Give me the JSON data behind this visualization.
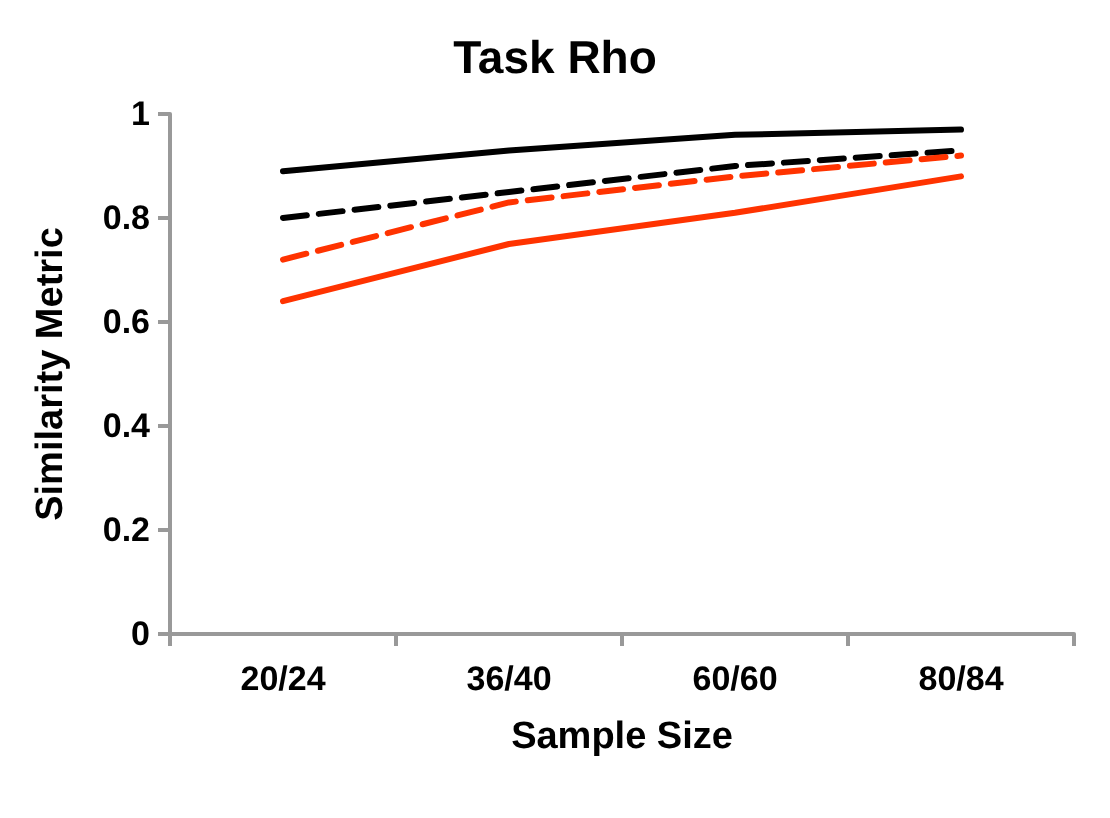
{
  "chart_data": {
    "type": "line",
    "title": "Task Rho",
    "xlabel": "Sample Size",
    "ylabel": "Similarity Metric",
    "categories": [
      "20/24",
      "36/40",
      "60/60",
      "80/84"
    ],
    "series": [
      {
        "color": "#000000",
        "line_style": "solid",
        "values": [
          0.89,
          0.93,
          0.96,
          0.97
        ]
      },
      {
        "color": "#000000",
        "line_style": "dashed",
        "values": [
          0.8,
          0.85,
          0.9,
          0.93
        ]
      },
      {
        "color": "#ff3300",
        "line_style": "dashed",
        "values": [
          0.72,
          0.83,
          0.88,
          0.92
        ]
      },
      {
        "color": "#ff3300",
        "line_style": "solid",
        "values": [
          0.64,
          0.75,
          0.81,
          0.88
        ]
      }
    ],
    "ylim": [
      0,
      1
    ],
    "yticks": [
      0,
      0.2,
      0.4,
      0.6,
      0.8,
      1
    ],
    "grid": false,
    "marker": "none"
  }
}
